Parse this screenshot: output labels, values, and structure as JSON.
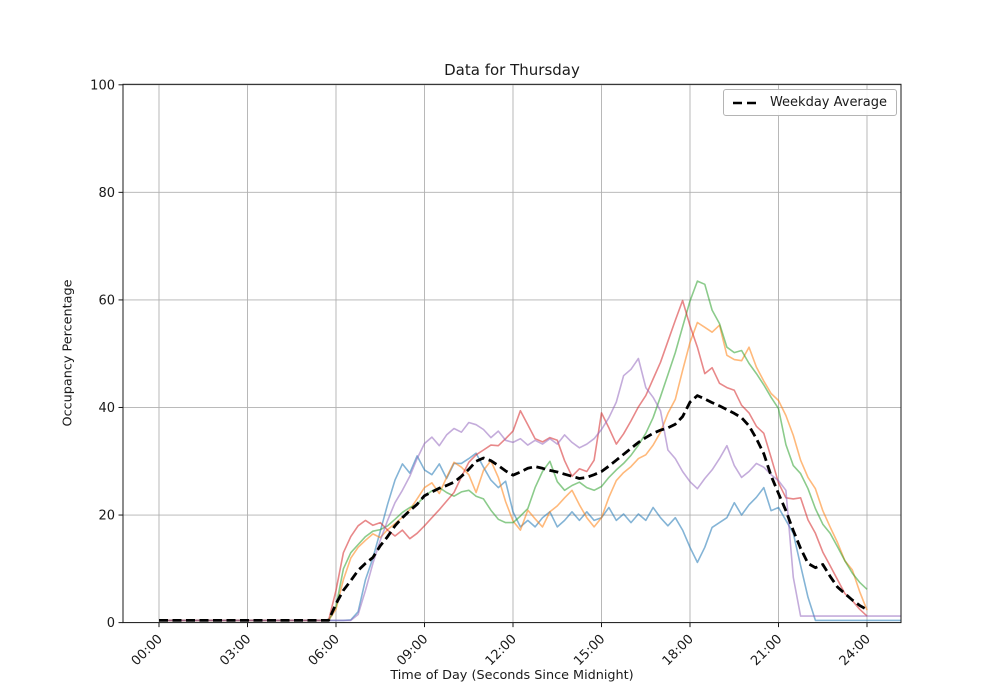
{
  "chart_data": {
    "type": "line",
    "title": "Data for Thursday",
    "xlabel": "Time of Day (Seconds Since Midnight)",
    "ylabel": "Occupancy Percentage",
    "grid": true,
    "legend_position": "upper right",
    "legend": [
      {
        "label": "Weekday Average",
        "style": "dashed",
        "color": "#000000"
      }
    ],
    "x_ticks": [
      "00:00",
      "03:00",
      "06:00",
      "09:00",
      "12:00",
      "15:00",
      "18:00",
      "21:00",
      "24:00"
    ],
    "x_tick_hours": [
      0,
      3,
      6,
      9,
      12,
      15,
      18,
      21,
      24
    ],
    "x_tick_rotation_deg": 45,
    "y_ticks": [
      0,
      20,
      40,
      60,
      80,
      100
    ],
    "ylim": [
      0,
      100
    ],
    "x_start_hours": 0,
    "x_step_hours": 0.25,
    "x_end_hours": 24,
    "style": {
      "grid_color": "#b0b0b0",
      "axis_color": "#1a1a1a",
      "text_color": "#1a1a1a",
      "background": "#ffffff"
    },
    "series": [
      {
        "name": "blue",
        "color": "#1f77b4",
        "opacity": 0.55,
        "width": 1.6,
        "dashed": false,
        "extend_to_right_edge": true,
        "values": [
          0.4,
          0.4,
          0.4,
          0.4,
          0.4,
          0.4,
          0.4,
          0.4,
          0.4,
          0.4,
          0.4,
          0.4,
          0.4,
          0.4,
          0.4,
          0.4,
          0.4,
          0.4,
          0.4,
          0.4,
          0.4,
          0.4,
          0.4,
          0.4,
          0.4,
          0.4,
          0.5,
          2,
          8,
          12,
          17,
          22,
          26.5,
          29.5,
          27.8,
          31,
          28.4,
          27.5,
          29.5,
          26.8,
          29.6,
          29.6,
          30.5,
          31.5,
          28.9,
          26.5,
          25.1,
          26.3,
          20.6,
          17.8,
          19,
          17.8,
          19.5,
          20.6,
          17.8,
          19,
          20.6,
          19,
          20.6,
          19,
          19.5,
          21.4,
          19,
          20.2,
          18.6,
          20.2,
          19,
          21.4,
          19.5,
          18,
          19.5,
          17.2,
          14,
          11.2,
          14,
          17.7,
          18.6,
          19.5,
          22.3,
          20,
          21.9,
          23.3,
          25.1,
          20.8,
          21.4,
          19,
          16.6,
          10.6,
          4.7,
          0.4,
          0.4,
          0.4,
          0.4,
          0.4,
          0.4,
          0.4,
          0.4
        ]
      },
      {
        "name": "orange",
        "color": "#ff7f0e",
        "opacity": 0.55,
        "width": 1.6,
        "dashed": false,
        "extend_to_right_edge": false,
        "values": [
          0.4,
          0.4,
          0.4,
          0.4,
          0.4,
          0.4,
          0.4,
          0.4,
          0.4,
          0.4,
          0.4,
          0.4,
          0.4,
          0.4,
          0.4,
          0.4,
          0.4,
          0.4,
          0.4,
          0.4,
          0.4,
          0.4,
          0.4,
          0.4,
          2.5,
          8,
          12,
          14,
          15.3,
          16.5,
          15.8,
          17.3,
          18.4,
          19.6,
          21,
          23,
          25.1,
          26,
          24,
          27,
          29.8,
          28.9,
          27.5,
          24.2,
          28.3,
          30.1,
          27,
          22.5,
          18.9,
          17.2,
          20.9,
          19.3,
          17.8,
          20.6,
          21.7,
          23.2,
          24.6,
          21.9,
          19.5,
          17.8,
          19.5,
          23.3,
          26.4,
          27.9,
          29,
          30.5,
          31.2,
          33,
          35.4,
          38.9,
          41.5,
          46.9,
          52.1,
          55.8,
          54.9,
          54,
          55.3,
          49.7,
          48.9,
          48.7,
          51.2,
          47.5,
          44.9,
          42.6,
          41.3,
          38.5,
          34.8,
          30.2,
          27,
          24.9,
          20.8,
          17.8,
          14.9,
          11.5,
          9.8,
          5.8,
          2.3
        ]
      },
      {
        "name": "green",
        "color": "#2ca02c",
        "opacity": 0.55,
        "width": 1.6,
        "dashed": false,
        "extend_to_right_edge": false,
        "values": [
          0.4,
          0.4,
          0.4,
          0.4,
          0.4,
          0.4,
          0.4,
          0.4,
          0.4,
          0.4,
          0.4,
          0.4,
          0.4,
          0.4,
          0.4,
          0.4,
          0.4,
          0.4,
          0.4,
          0.4,
          0.4,
          0.4,
          0.4,
          0.4,
          3,
          10,
          13,
          14.5,
          16,
          17,
          17.3,
          18,
          19.2,
          20.5,
          21.4,
          22,
          23.5,
          24.5,
          25.1,
          24.2,
          23.5,
          24.3,
          24.6,
          23.5,
          23,
          20.9,
          19.2,
          18.6,
          18.6,
          19.8,
          21.2,
          25.1,
          28.1,
          30,
          26.2,
          24.6,
          25.5,
          26.1,
          25.1,
          24.6,
          25.3,
          27,
          28.4,
          29.6,
          31.1,
          33,
          35.2,
          38.1,
          42,
          46.1,
          50.2,
          55,
          59.8,
          63.5,
          62.9,
          58.1,
          55.6,
          51.2,
          50.2,
          50.6,
          48.2,
          46.3,
          44.2,
          41.9,
          39.8,
          33.1,
          29.2,
          27.7,
          24.9,
          21.2,
          18.3,
          16.6,
          14.1,
          11.5,
          9.2,
          7.5,
          6.2
        ]
      },
      {
        "name": "red",
        "color": "#d62728",
        "opacity": 0.55,
        "width": 1.6,
        "dashed": false,
        "extend_to_right_edge": false,
        "values": [
          0.4,
          0.4,
          0.4,
          0.4,
          0.4,
          0.4,
          0.4,
          0.4,
          0.4,
          0.4,
          0.4,
          0.4,
          0.4,
          0.4,
          0.4,
          0.4,
          0.4,
          0.4,
          0.4,
          0.4,
          0.4,
          0.4,
          0.4,
          0.4,
          6,
          13,
          16,
          18,
          19,
          18.1,
          18.6,
          17.2,
          16.1,
          17.2,
          15.6,
          16.6,
          18,
          19.5,
          21,
          22.6,
          24.2,
          27.1,
          29.8,
          31.2,
          32.1,
          33,
          32.9,
          34.2,
          35.6,
          39.4,
          36.8,
          34.2,
          33.6,
          34.4,
          33.9,
          30.1,
          27.2,
          28.6,
          28.1,
          30.2,
          39,
          36.2,
          33.2,
          35.1,
          37.5,
          40.1,
          42.2,
          45.3,
          48.4,
          52.3,
          56.2,
          59.9,
          55.2,
          51.2,
          46.3,
          47.4,
          44.5,
          43.7,
          43.2,
          40.4,
          39,
          36.5,
          35.2,
          30.7,
          26,
          23.2,
          23,
          23.2,
          19.1,
          16.6,
          13.1,
          10.6,
          8,
          5.4,
          4.1,
          2.5,
          1.2
        ]
      },
      {
        "name": "purple",
        "color": "#9467bd",
        "opacity": 0.55,
        "width": 1.6,
        "dashed": false,
        "extend_to_right_edge": true,
        "values": [
          0.4,
          0.4,
          0.4,
          0.4,
          0.4,
          0.4,
          0.4,
          0.4,
          0.4,
          0.4,
          0.4,
          0.4,
          0.4,
          0.4,
          0.4,
          0.4,
          0.4,
          0.4,
          0.4,
          0.4,
          0.4,
          0.4,
          0.4,
          0.4,
          0.4,
          0.4,
          0.4,
          1.5,
          6,
          11,
          15.3,
          19,
          22.3,
          24.6,
          27.2,
          30.5,
          33.3,
          34.5,
          32.9,
          34.9,
          36.1,
          35.4,
          37.2,
          36.8,
          35.9,
          34.4,
          35.6,
          33.9,
          33.5,
          34.2,
          33,
          33.9,
          33.2,
          34.2,
          33.2,
          34.9,
          33.5,
          32.5,
          33.2,
          34.2,
          35.9,
          38.1,
          41,
          45.9,
          47.1,
          49.1,
          43.7,
          41.9,
          39.4,
          32.1,
          30.5,
          28.1,
          26.2,
          24.9,
          26.8,
          28.4,
          30.5,
          32.9,
          29.2,
          27,
          28.1,
          29.6,
          28.9,
          27.5,
          26.4,
          24.6,
          8.4,
          1.2,
          1.2,
          1.2,
          1.2,
          1.2,
          1.2,
          1.2,
          1.2,
          1.2,
          1.2
        ]
      },
      {
        "name": "weekday-average",
        "label": "Weekday Average",
        "color": "#000000",
        "opacity": 1,
        "width": 2.8,
        "dashed": true,
        "extend_to_right_edge": false,
        "values": [
          0.4,
          0.4,
          0.4,
          0.4,
          0.4,
          0.4,
          0.4,
          0.4,
          0.4,
          0.4,
          0.4,
          0.4,
          0.4,
          0.4,
          0.4,
          0.4,
          0.4,
          0.4,
          0.4,
          0.4,
          0.4,
          0.4,
          0.4,
          0.4,
          3.5,
          6,
          7.8,
          9.7,
          11,
          12.1,
          14.3,
          16,
          18,
          19.5,
          20.8,
          22,
          23.6,
          24.3,
          25,
          25.5,
          26.1,
          27.2,
          28.5,
          30,
          30.6,
          30.1,
          29.2,
          28.2,
          27.4,
          28,
          28.7,
          29,
          28.7,
          28.3,
          28,
          27.6,
          27.2,
          26.8,
          27,
          27.5,
          28.1,
          29.1,
          30.2,
          31.3,
          32.4,
          33.5,
          34.4,
          35.2,
          35.8,
          36.2,
          36.9,
          38.3,
          41,
          42.2,
          41.6,
          40.9,
          40.3,
          39.6,
          38.9,
          38.1,
          36.6,
          34.2,
          31.4,
          27.3,
          24,
          20.8,
          17.1,
          13.8,
          11,
          10.2,
          10.8,
          8.6,
          6.6,
          5.4,
          4.2,
          3.2,
          2.4
        ]
      }
    ]
  }
}
